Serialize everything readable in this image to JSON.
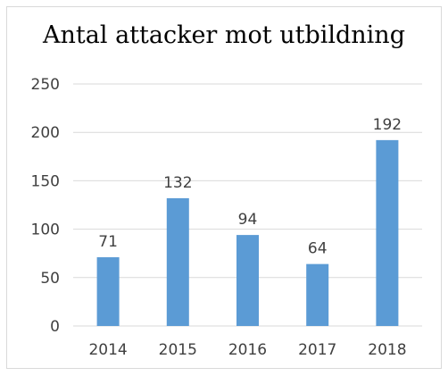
{
  "chart_data": {
    "type": "bar",
    "title": "Antal attacker mot utbildning",
    "categories": [
      "2014",
      "2015",
      "2016",
      "2017",
      "2018"
    ],
    "values": [
      71,
      132,
      94,
      64,
      192
    ],
    "ylim": [
      0,
      250
    ],
    "yticks": [
      0,
      50,
      100,
      150,
      200,
      250
    ],
    "grid": true,
    "legend": "none",
    "data_labels": true,
    "colors": {
      "bar": "#5b9bd5",
      "grid": "#d9d9d9",
      "text": "#404040"
    }
  }
}
